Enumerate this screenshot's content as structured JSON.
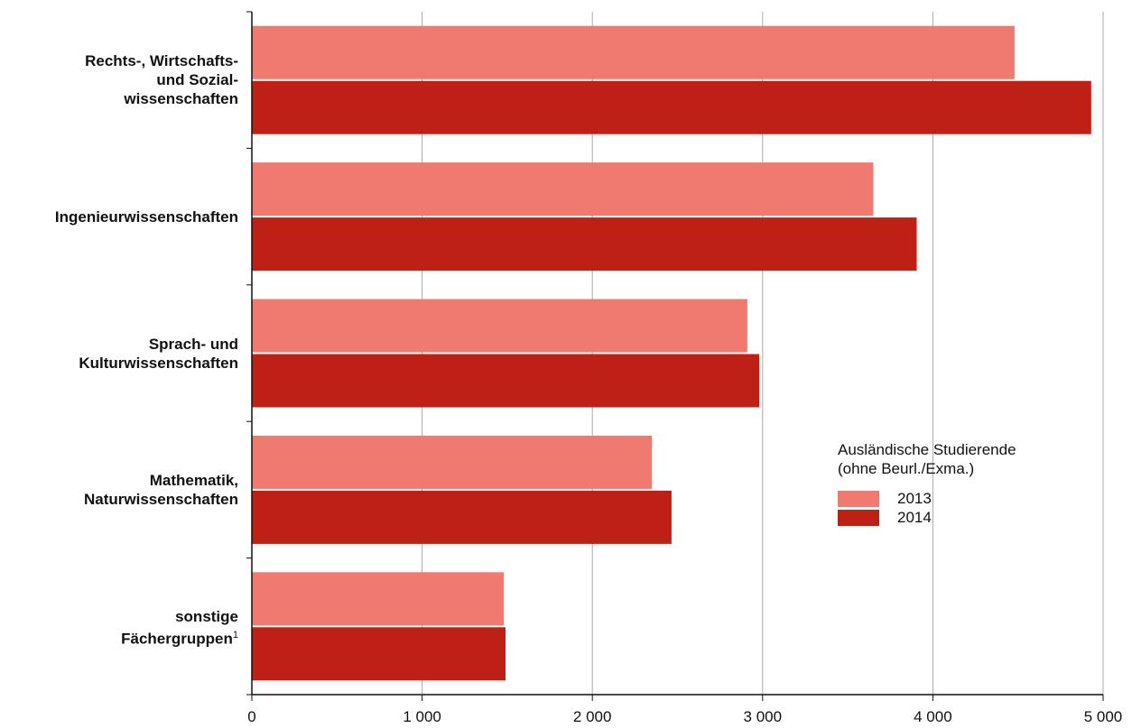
{
  "chart_data": {
    "type": "bar",
    "orientation": "horizontal",
    "categories": [
      "Rechts-, Wirtschafts-\nund Sozial-\nwissenschaften",
      "Ingenieurwissenschaften",
      "Sprach- und\nKulturwissenschaften",
      "Mathematik,\nNaturwissenschaften",
      "sonstige\nFächergruppen"
    ],
    "category_footnotes": [
      "",
      "",
      "",
      "",
      "1"
    ],
    "series": [
      {
        "name": "2013",
        "color": "#f07a70",
        "values": [
          4480,
          3650,
          2910,
          2350,
          1480
        ]
      },
      {
        "name": "2014",
        "color": "#bf2015",
        "values": [
          4930,
          3905,
          2980,
          2465,
          1490
        ]
      }
    ],
    "x_ticks": [
      0,
      1000,
      2000,
      3000,
      4000,
      5000
    ],
    "x_tick_labels": [
      "0",
      "1 000",
      "2 000",
      "3 000",
      "4 000",
      "5 000"
    ],
    "xlim": [
      0,
      5000
    ],
    "grid": true,
    "legend_title": "Ausländische Studierende\n(ohne Beurl./Exma.)",
    "legend_position": "right"
  }
}
